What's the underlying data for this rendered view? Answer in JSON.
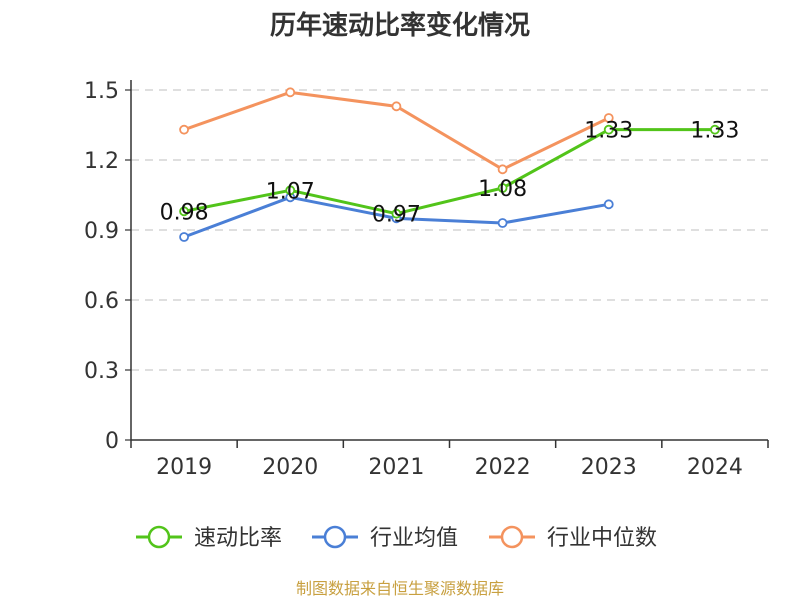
{
  "chart_data": {
    "type": "line",
    "title": "历年速动比率变化情况",
    "categories": [
      "2019",
      "2020",
      "2021",
      "2022",
      "2023",
      "2024"
    ],
    "ylim": [
      0,
      1.5
    ],
    "yticks": [
      "0",
      "0.3",
      "0.6",
      "0.9",
      "1.2",
      "1.5"
    ],
    "grid": true,
    "legend_position": "bottom",
    "series": [
      {
        "name": "速动比率",
        "color": "#52c41a",
        "values": [
          0.98,
          1.07,
          0.97,
          1.08,
          1.33,
          1.33
        ],
        "labels": [
          "0.98",
          "1.07",
          "0.97",
          "1.08",
          "1.33",
          "1.33"
        ]
      },
      {
        "name": "行业均值",
        "color": "#4a7fd6",
        "values": [
          0.87,
          1.04,
          0.95,
          0.93,
          1.01,
          null
        ]
      },
      {
        "name": "行业中位数",
        "color": "#f4935e",
        "values": [
          1.33,
          1.49,
          1.43,
          1.16,
          1.38,
          null
        ]
      }
    ]
  },
  "footer": {
    "source": "制图数据来自恒生聚源数据库"
  }
}
